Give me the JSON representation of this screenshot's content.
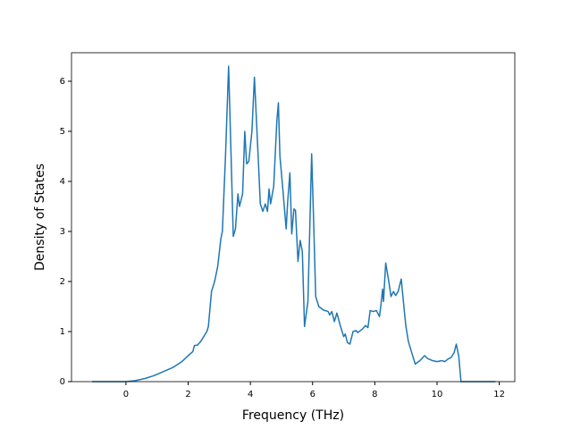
{
  "chart_data": {
    "type": "line",
    "x_label": "Frequency (THz)",
    "y_label": "Density of States",
    "color": "#1f77b4",
    "x": [
      -1.09,
      -0.5,
      0,
      0.3,
      0.6,
      0.9,
      1.2,
      1.5,
      1.8,
      2.0,
      2.15,
      2.2,
      2.3,
      2.4,
      2.5,
      2.6,
      2.65,
      2.75,
      2.85,
      2.95,
      3.05,
      3.1,
      3.2,
      3.3,
      3.38,
      3.45,
      3.52,
      3.6,
      3.65,
      3.75,
      3.82,
      3.88,
      3.95,
      4.05,
      4.13,
      4.25,
      4.32,
      4.4,
      4.48,
      4.55,
      4.6,
      4.65,
      4.75,
      4.85,
      4.9,
      4.95,
      5.05,
      5.15,
      5.2,
      5.27,
      5.33,
      5.4,
      5.45,
      5.53,
      5.6,
      5.67,
      5.74,
      5.85,
      5.97,
      6.02,
      6.1,
      6.2,
      6.35,
      6.5,
      6.55,
      6.62,
      6.7,
      6.78,
      6.9,
      7.0,
      7.05,
      7.12,
      7.2,
      7.3,
      7.4,
      7.45,
      7.6,
      7.7,
      7.78,
      7.85,
      7.95,
      8.05,
      8.15,
      8.2,
      8.25,
      8.28,
      8.35,
      8.45,
      8.52,
      8.6,
      8.67,
      8.75,
      8.85,
      8.95,
      9.0,
      9.08,
      9.2,
      9.3,
      9.45,
      9.6,
      9.7,
      9.85,
      10.0,
      10.15,
      10.25,
      10.35,
      10.45,
      10.55,
      10.62,
      10.7,
      10.77,
      11.88
    ],
    "values": [
      0,
      0,
      0,
      0.02,
      0.06,
      0.12,
      0.2,
      0.28,
      0.4,
      0.52,
      0.6,
      0.72,
      0.73,
      0.8,
      0.9,
      1.0,
      1.1,
      1.8,
      2.0,
      2.3,
      2.85,
      3.0,
      4.5,
      6.3,
      4.5,
      2.9,
      3.05,
      3.75,
      3.5,
      3.75,
      5.0,
      4.35,
      4.4,
      5.0,
      6.08,
      4.5,
      3.55,
      3.4,
      3.55,
      3.4,
      3.85,
      3.55,
      3.9,
      5.2,
      5.57,
      4.5,
      3.8,
      3.05,
      3.6,
      4.17,
      2.95,
      3.45,
      3.42,
      2.4,
      2.82,
      2.6,
      1.1,
      1.6,
      4.55,
      3.5,
      1.7,
      1.5,
      1.43,
      1.4,
      1.33,
      1.4,
      1.2,
      1.37,
      1.1,
      0.9,
      0.95,
      0.78,
      0.75,
      1.0,
      1.02,
      0.98,
      1.05,
      1.12,
      1.08,
      1.42,
      1.4,
      1.42,
      1.3,
      1.55,
      1.85,
      1.6,
      2.37,
      2.0,
      1.7,
      1.8,
      1.72,
      1.8,
      2.05,
      1.4,
      1.1,
      0.8,
      0.55,
      0.35,
      0.42,
      0.52,
      0.46,
      0.42,
      0.4,
      0.42,
      0.4,
      0.45,
      0.48,
      0.58,
      0.75,
      0.5,
      0,
      0
    ],
    "xlim": [
      -1.75,
      12.5
    ],
    "ylim": [
      0,
      6.57
    ],
    "xticks": [
      0,
      2,
      4,
      6,
      8,
      10,
      12
    ],
    "yticks": [
      0,
      1,
      2,
      3,
      4,
      5,
      6
    ]
  }
}
